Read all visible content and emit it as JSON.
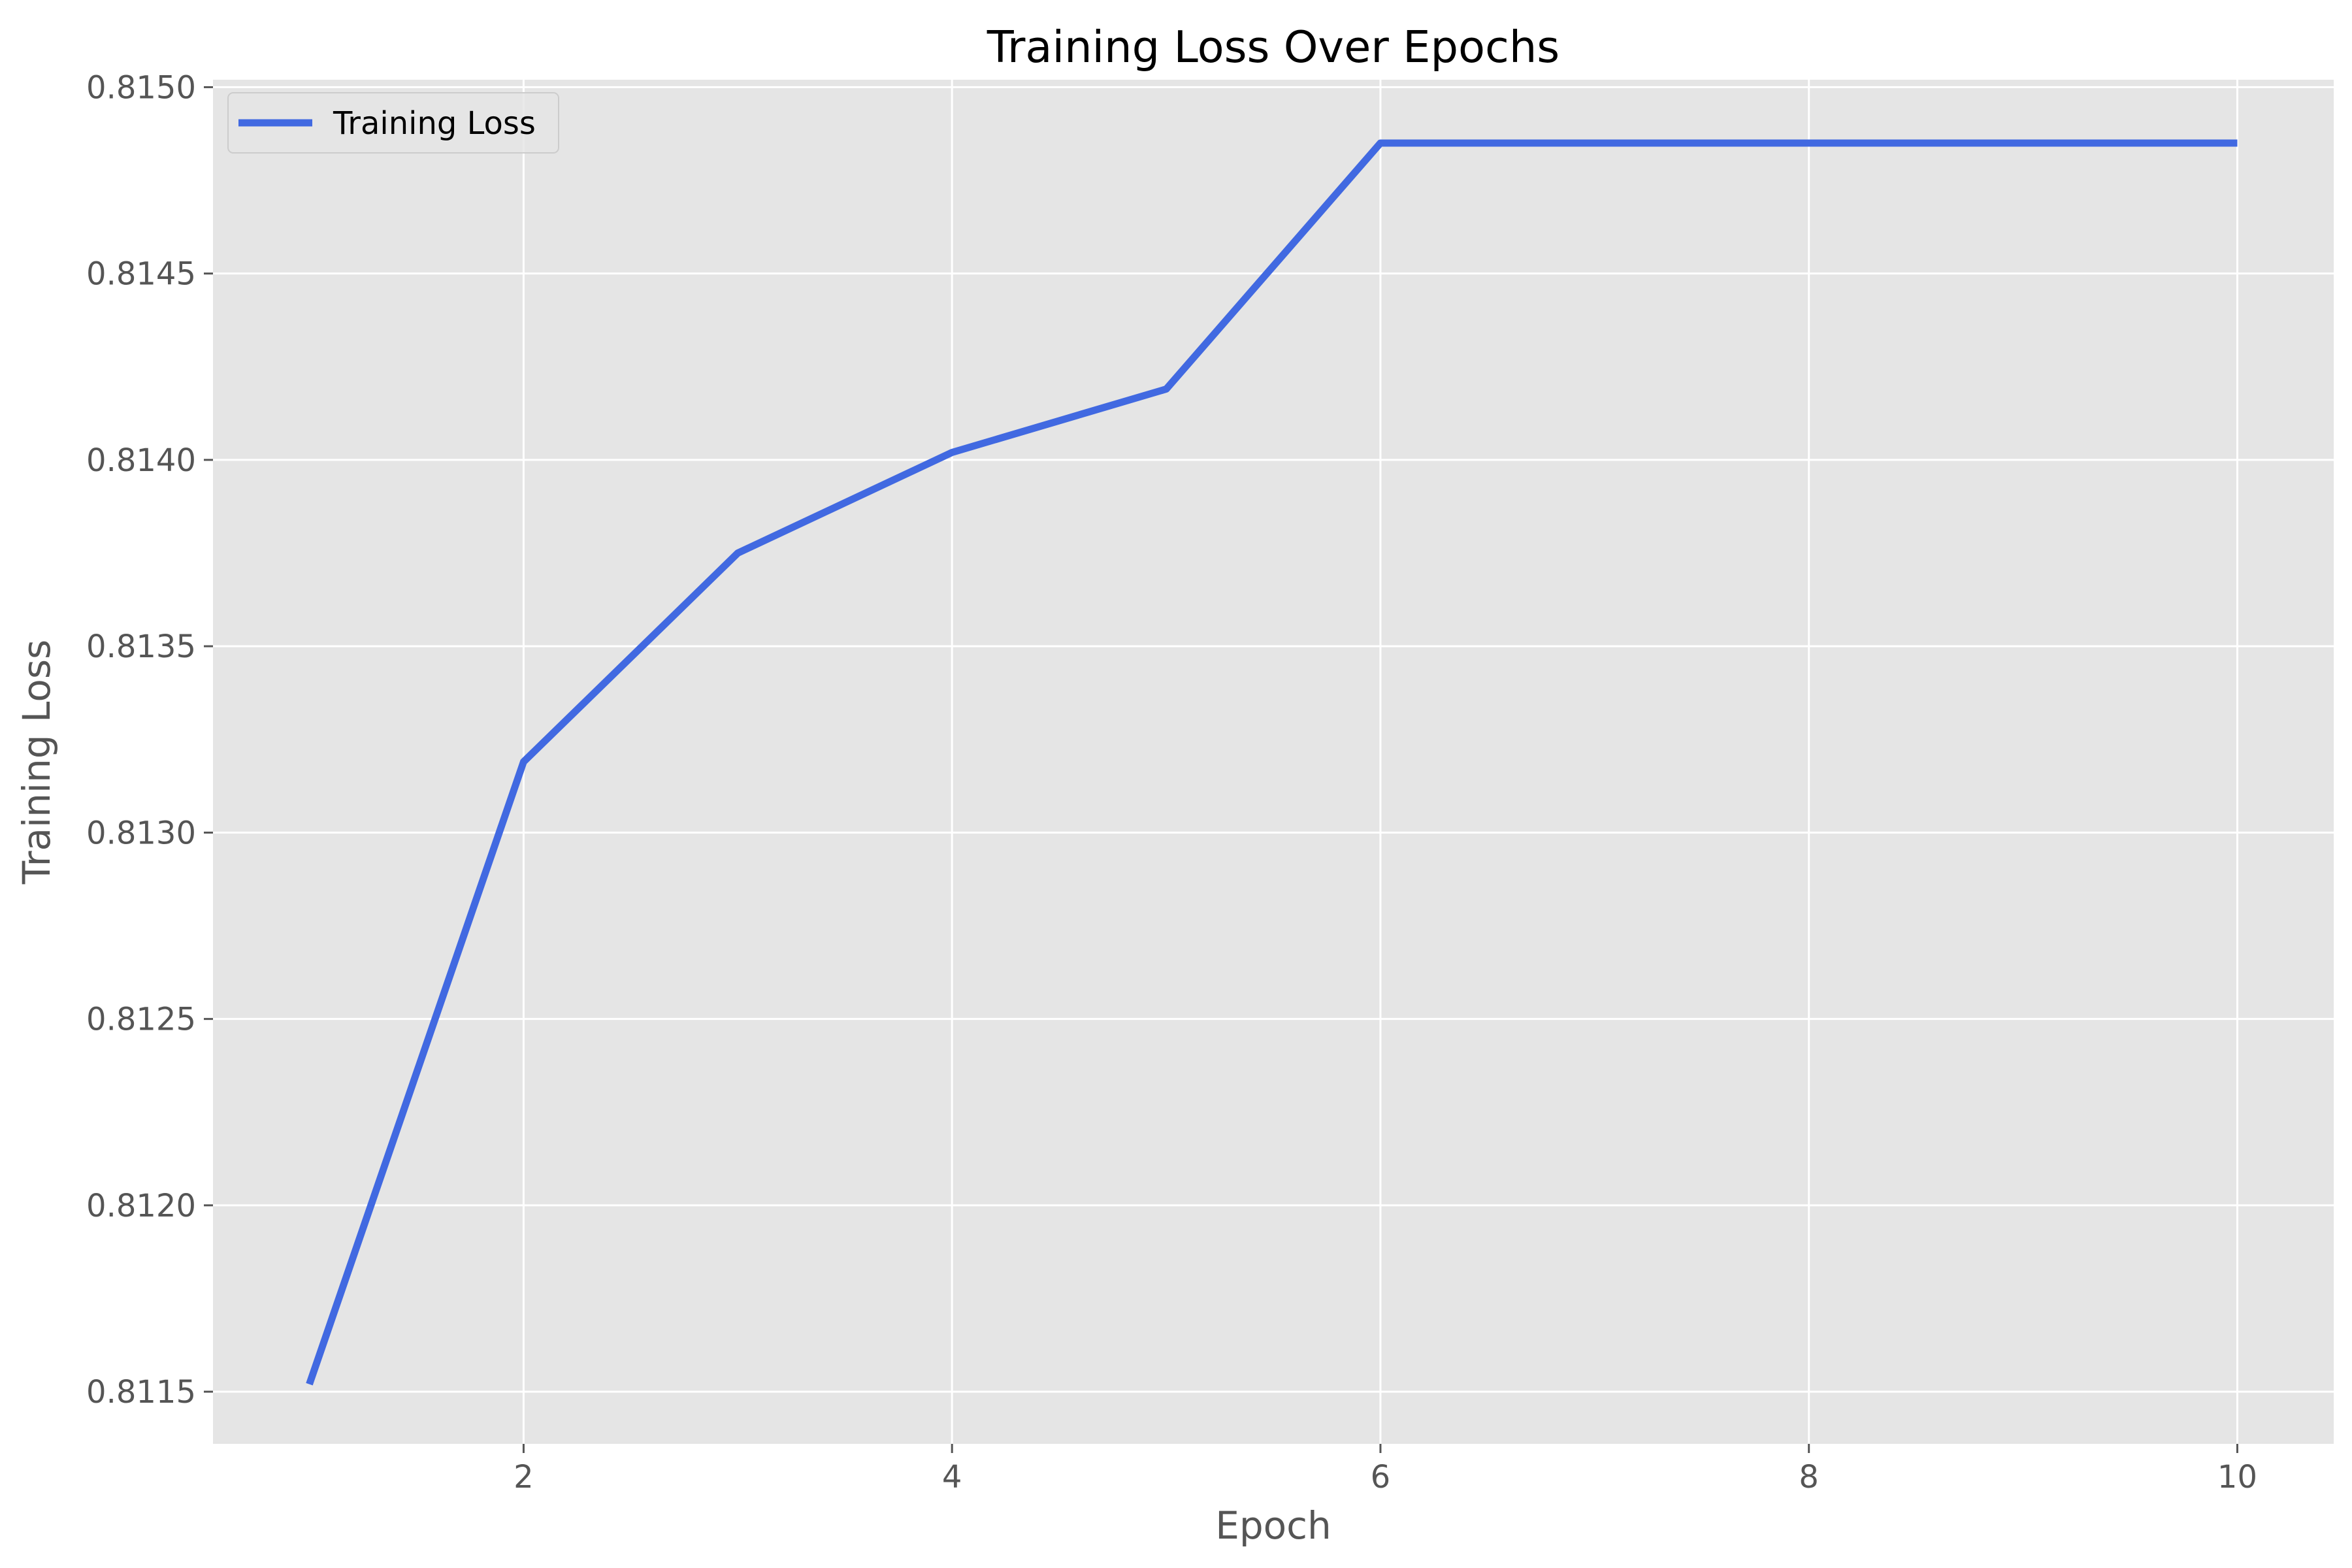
{
  "chart_data": {
    "type": "line",
    "title": "Training Loss Over Epochs",
    "xlabel": "Epoch",
    "ylabel": "Training Loss",
    "xlim": [
      0.55,
      10.45
    ],
    "ylim": [
      0.81136,
      0.81502
    ],
    "xticks": [
      2,
      4,
      6,
      8,
      10
    ],
    "yticks": [
      0.8115,
      0.812,
      0.8125,
      0.813,
      0.8135,
      0.814,
      0.8145,
      0.815
    ],
    "xtick_labels": [
      "2",
      "4",
      "6",
      "8",
      "10"
    ],
    "ytick_labels": [
      "0.8115",
      "0.8120",
      "0.8125",
      "0.8130",
      "0.8135",
      "0.8140",
      "0.8145",
      "0.8150"
    ],
    "grid": true,
    "legend_position": "top-left",
    "background_color": "#e5e5e5",
    "grid_color": "#ffffff",
    "series": [
      {
        "name": "Training Loss",
        "color": "#4169e1",
        "x": [
          1,
          2,
          3,
          4,
          5,
          6,
          7,
          8,
          9,
          10
        ],
        "y": [
          0.81152,
          0.81319,
          0.81375,
          0.81402,
          0.81419,
          0.81485,
          0.81485,
          0.81485,
          0.81485,
          0.81485
        ]
      }
    ]
  }
}
